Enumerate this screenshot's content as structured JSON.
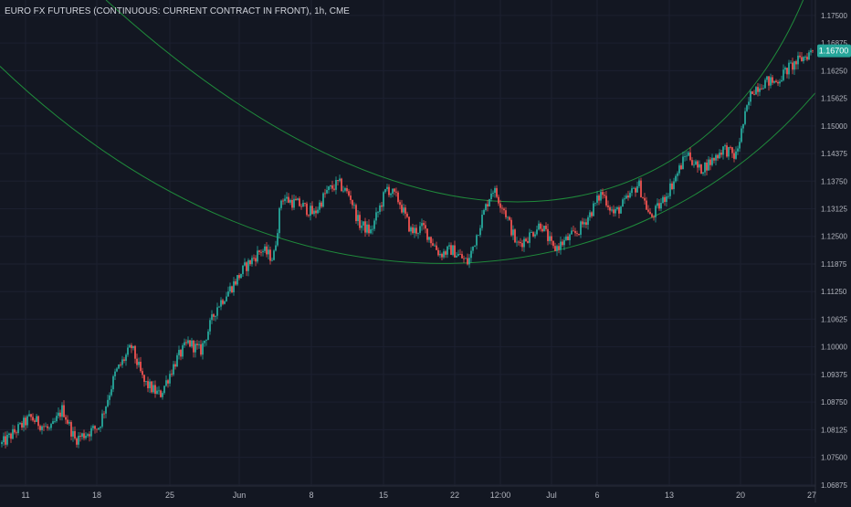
{
  "header": {
    "title": "EURO FX FUTURES (CONTINUOUS: CURRENT CONTRACT IN FRONT), 1h, CME"
  },
  "colors": {
    "background": "#131722",
    "up": "#26a69a",
    "down": "#ef5350",
    "channel": "#1f8a3b",
    "axis_text": "#b2b5be",
    "price_tag": "#26a69a"
  },
  "chart_data": {
    "type": "candlestick",
    "title": "EURO FX FUTURES (CONTINUOUS: CURRENT CONTRACT IN FRONT), 1h, CME",
    "x_ticks": [
      "11",
      "18",
      "25",
      "Jun",
      "8",
      "15",
      "22",
      "12:00",
      "Jul",
      "6",
      "13",
      "20",
      "27"
    ],
    "y_ticks": [
      "1.06875",
      "1.07500",
      "1.08125",
      "1.08750",
      "1.09375",
      "1.10000",
      "1.10625",
      "1.11250",
      "1.11875",
      "1.12500",
      "1.13125",
      "1.13750",
      "1.14375",
      "1.15000",
      "1.15625",
      "1.16250",
      "1.16875",
      "1.17500"
    ],
    "ylim": [
      1.0685,
      1.1785
    ],
    "last_price": "1.16700",
    "last_value": 1.167,
    "price_path": [
      [
        0.0,
        1.078
      ],
      [
        0.035,
        1.084
      ],
      [
        0.06,
        1.081
      ],
      [
        0.075,
        1.086
      ],
      [
        0.09,
        1.079
      ],
      [
        0.12,
        1.082
      ],
      [
        0.14,
        1.094
      ],
      [
        0.16,
        1.1
      ],
      [
        0.175,
        1.092
      ],
      [
        0.195,
        1.089
      ],
      [
        0.215,
        1.097
      ],
      [
        0.23,
        1.101
      ],
      [
        0.245,
        1.099
      ],
      [
        0.265,
        1.109
      ],
      [
        0.285,
        1.114
      ],
      [
        0.3,
        1.118
      ],
      [
        0.32,
        1.122
      ],
      [
        0.335,
        1.12
      ],
      [
        0.345,
        1.134
      ],
      [
        0.355,
        1.133
      ],
      [
        0.37,
        1.132
      ],
      [
        0.385,
        1.13
      ],
      [
        0.4,
        1.135
      ],
      [
        0.415,
        1.137
      ],
      [
        0.43,
        1.134
      ],
      [
        0.44,
        1.128
      ],
      [
        0.455,
        1.126
      ],
      [
        0.465,
        1.131
      ],
      [
        0.475,
        1.136
      ],
      [
        0.49,
        1.133
      ],
      [
        0.505,
        1.126
      ],
      [
        0.52,
        1.127
      ],
      [
        0.54,
        1.121
      ],
      [
        0.555,
        1.122
      ],
      [
        0.575,
        1.119
      ],
      [
        0.59,
        1.128
      ],
      [
        0.605,
        1.136
      ],
      [
        0.62,
        1.131
      ],
      [
        0.635,
        1.123
      ],
      [
        0.65,
        1.125
      ],
      [
        0.665,
        1.128
      ],
      [
        0.68,
        1.122
      ],
      [
        0.695,
        1.124
      ],
      [
        0.71,
        1.126
      ],
      [
        0.725,
        1.13
      ],
      [
        0.74,
        1.135
      ],
      [
        0.755,
        1.13
      ],
      [
        0.77,
        1.133
      ],
      [
        0.785,
        1.137
      ],
      [
        0.8,
        1.129
      ],
      [
        0.815,
        1.133
      ],
      [
        0.83,
        1.138
      ],
      [
        0.845,
        1.144
      ],
      [
        0.86,
        1.14
      ],
      [
        0.875,
        1.142
      ],
      [
        0.89,
        1.145
      ],
      [
        0.905,
        1.143
      ],
      [
        0.915,
        1.151
      ],
      [
        0.925,
        1.158
      ],
      [
        0.94,
        1.16
      ],
      [
        0.955,
        1.16
      ],
      [
        0.97,
        1.163
      ],
      [
        0.985,
        1.165
      ],
      [
        1.0,
        1.167
      ]
    ],
    "channel": {
      "upper_curve": [
        [
          -0.05,
          1.23
        ],
        [
          0.3,
          1.15
        ],
        [
          0.62,
          1.1355
        ],
        [
          1.0,
          1.176
        ]
      ],
      "lower_curve": [
        [
          0.0,
          1.162
        ],
        [
          0.3,
          1.128
        ],
        [
          0.56,
          1.119
        ],
        [
          1.0,
          1.157
        ]
      ]
    }
  }
}
